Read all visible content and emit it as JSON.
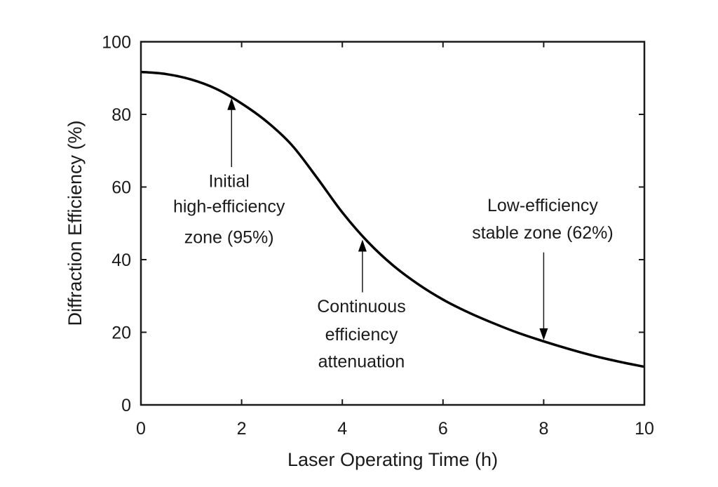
{
  "chart_data": {
    "type": "line",
    "title": "",
    "xlabel": "Laser Operating Time (h)",
    "ylabel": "Diffraction Efficiency (%)",
    "xlim": [
      0,
      10
    ],
    "ylim": [
      0,
      100
    ],
    "xticks": [
      0,
      2,
      4,
      6,
      8,
      10
    ],
    "yticks": [
      0,
      20,
      40,
      60,
      80,
      100
    ],
    "grid": false,
    "series": [
      {
        "name": "Diffraction efficiency",
        "x": [
          0,
          0.5,
          1,
          1.5,
          2,
          2.5,
          3,
          3.5,
          4,
          4.5,
          5,
          5.5,
          6,
          6.5,
          7,
          7.5,
          8,
          8.5,
          9,
          9.5,
          10
        ],
        "y": [
          91.7,
          91.1,
          89.6,
          87,
          83,
          78,
          71.5,
          62.5,
          53,
          45,
          38.5,
          33.3,
          29,
          25.5,
          22.5,
          19.8,
          17.5,
          15.4,
          13.5,
          11.9,
          10.5
        ]
      }
    ],
    "annotations": [
      {
        "lines": [
          "Initial",
          "high-efficiency",
          "zone (95%)"
        ],
        "text_x": 1.75,
        "text_y": [
          60,
          53,
          44.5
        ],
        "arrow_x": 1.8,
        "arrow_from": 65.5,
        "arrow_to": 84.5
      },
      {
        "lines": [
          "Continuous",
          "efficiency",
          "attenuation"
        ],
        "text_x": 4.38,
        "text_y": [
          25.5,
          17.8,
          10.3
        ],
        "arrow_x": 4.4,
        "arrow_from": 31,
        "arrow_to": 45.5
      },
      {
        "lines": [
          "Low-efficiency",
          "stable zone (62%)"
        ],
        "text_x": 7.98,
        "text_y": [
          53.3,
          45.8
        ],
        "arrow_x": 8.0,
        "arrow_from": 42,
        "arrow_to": 17.8
      }
    ]
  }
}
